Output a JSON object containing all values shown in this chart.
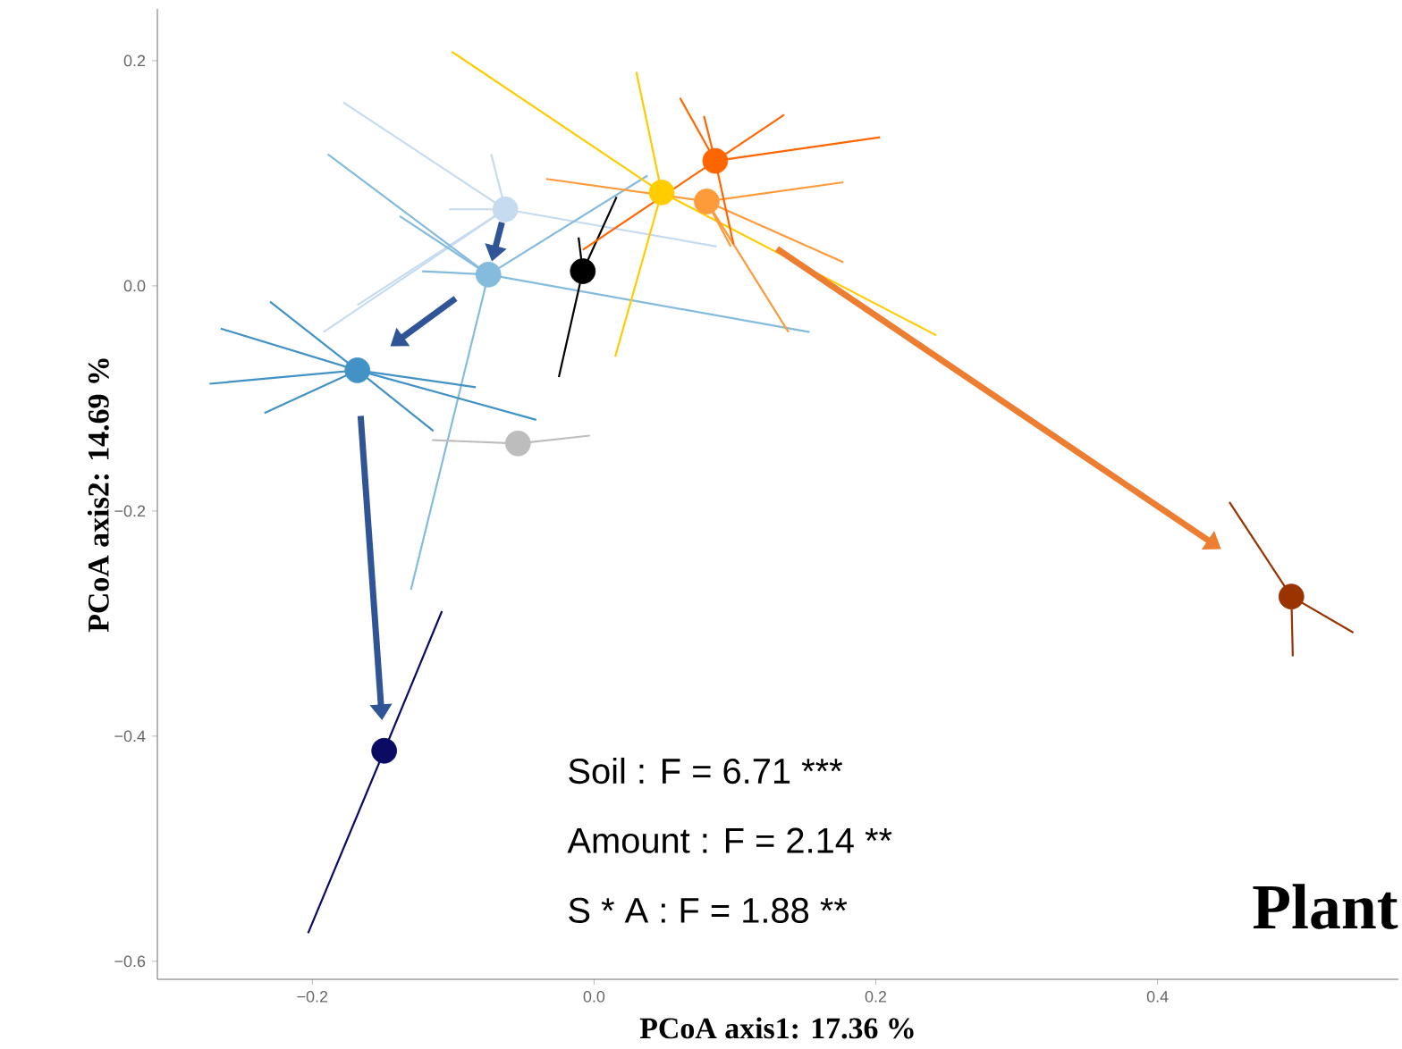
{
  "chart_data": {
    "type": "line",
    "xlabel": "PCoA axis1: 17.36 %",
    "ylabel": "PCoA axis2: 14.69 %",
    "xlim": [
      -0.31,
      0.571
    ],
    "ylim": [
      -0.616,
      0.246
    ],
    "xticks": [
      {
        "value": -0.2,
        "label": "−0.2"
      },
      {
        "value": 0,
        "label": "0.0"
      },
      {
        "value": 0.2,
        "label": "0.2"
      },
      {
        "value": 0.4,
        "label": "0.4"
      }
    ],
    "yticks": [
      {
        "value": -0.6,
        "label": "−0.6"
      },
      {
        "value": -0.4,
        "label": "−0.4"
      },
      {
        "value": -0.2,
        "label": "−0.2"
      },
      {
        "value": 0,
        "label": "0.0"
      },
      {
        "value": 0.2,
        "label": "0.2"
      }
    ],
    "line_style": "solid",
    "series": [
      {
        "color": "#c6dbef",
        "x": [
          -0.063,
          -0.178
        ],
        "values": [
          0.068,
          0.163
        ]
      },
      {
        "color": "#c6dbef",
        "x": [
          -0.063,
          -0.103
        ],
        "values": [
          0.068,
          0.068
        ]
      },
      {
        "color": "#c6dbef",
        "x": [
          -0.063,
          0.087
        ],
        "values": [
          0.068,
          0.035
        ]
      },
      {
        "color": "#c6dbef",
        "x": [
          -0.063,
          -0.192
        ],
        "values": [
          0.068,
          -0.041
        ]
      },
      {
        "color": "#c6dbef",
        "x": [
          -0.063,
          -0.073
        ],
        "values": [
          0.068,
          0.117
        ]
      },
      {
        "color": "#c6dbef",
        "x": [
          -0.063,
          -0.168
        ],
        "values": [
          0.068,
          -0.017
        ]
      },
      {
        "color": "#85bbdc",
        "x": [
          -0.075,
          -0.189
        ],
        "values": [
          0.01,
          0.117
        ]
      },
      {
        "color": "#85bbdc",
        "x": [
          -0.075,
          -0.138
        ],
        "values": [
          0.01,
          0.062
        ]
      },
      {
        "color": "#85bbdc",
        "x": [
          -0.075,
          0.153
        ],
        "values": [
          0.01,
          -0.041
        ]
      },
      {
        "color": "#85bbdc",
        "x": [
          -0.075,
          -0.13
        ],
        "values": [
          0.01,
          -0.27
        ]
      },
      {
        "color": "#85bbdc",
        "x": [
          -0.075,
          0.038
        ],
        "values": [
          0.01,
          0.098
        ]
      },
      {
        "color": "#85bbdc",
        "x": [
          -0.075,
          -0.122
        ],
        "values": [
          0.01,
          0.013
        ]
      },
      {
        "color": "#4292c6",
        "x": [
          -0.168,
          -0.23
        ],
        "values": [
          -0.075,
          -0.014
        ]
      },
      {
        "color": "#4292c6",
        "x": [
          -0.168,
          -0.265
        ],
        "values": [
          -0.075,
          -0.038
        ]
      },
      {
        "color": "#4292c6",
        "x": [
          -0.168,
          -0.273
        ],
        "values": [
          -0.075,
          -0.087
        ]
      },
      {
        "color": "#4292c6",
        "x": [
          -0.168,
          -0.234
        ],
        "values": [
          -0.075,
          -0.113
        ]
      },
      {
        "color": "#4292c6",
        "x": [
          -0.168,
          -0.114
        ],
        "values": [
          -0.075,
          -0.129
        ]
      },
      {
        "color": "#4292c6",
        "x": [
          -0.168,
          -0.041
        ],
        "values": [
          -0.075,
          -0.119
        ]
      },
      {
        "color": "#4292c6",
        "x": [
          -0.168,
          -0.084
        ],
        "values": [
          -0.075,
          -0.09
        ]
      },
      {
        "color": "#0b0b63",
        "x": [
          -0.149,
          -0.203
        ],
        "values": [
          -0.413,
          -0.575
        ]
      },
      {
        "color": "#0b0b63",
        "x": [
          -0.149,
          -0.108
        ],
        "values": [
          -0.413,
          -0.289
        ]
      },
      {
        "color": "#bdbdbd",
        "x": [
          -0.054,
          -0.115
        ],
        "values": [
          -0.14,
          -0.137
        ]
      },
      {
        "color": "#bdbdbd",
        "x": [
          -0.054,
          -0.003
        ],
        "values": [
          -0.14,
          -0.133
        ]
      },
      {
        "color": "#000000",
        "x": [
          -0.008,
          -0.025
        ],
        "values": [
          0.013,
          -0.081
        ]
      },
      {
        "color": "#000000",
        "x": [
          -0.008,
          0.016
        ],
        "values": [
          0.013,
          0.079
        ]
      },
      {
        "color": "#000000",
        "x": [
          -0.008,
          -0.011
        ],
        "values": [
          0.013,
          0.043
        ]
      },
      {
        "color": "#ffcc00",
        "x": [
          0.048,
          -0.101
        ],
        "values": [
          0.083,
          0.208
        ]
      },
      {
        "color": "#ffcc00",
        "x": [
          0.048,
          0.03
        ],
        "values": [
          0.083,
          0.19
        ]
      },
      {
        "color": "#ffcc00",
        "x": [
          0.048,
          0.015
        ],
        "values": [
          0.083,
          -0.063
        ]
      },
      {
        "color": "#ffcc00",
        "x": [
          0.048,
          0.243
        ],
        "values": [
          0.083,
          -0.044
        ]
      },
      {
        "color": "#fd9a3a",
        "x": [
          0.08,
          0.177
        ],
        "values": [
          0.075,
          0.092
        ]
      },
      {
        "color": "#fd9a3a",
        "x": [
          0.08,
          0.138
        ],
        "values": [
          0.075,
          -0.041
        ]
      },
      {
        "color": "#fd9a3a",
        "x": [
          0.08,
          0.177
        ],
        "values": [
          0.075,
          0.021
        ]
      },
      {
        "color": "#fd9a3a",
        "x": [
          0.08,
          -0.034
        ],
        "values": [
          0.075,
          0.095
        ]
      },
      {
        "color": "#fd9a3a",
        "x": [
          0.08,
          0.097
        ],
        "values": [
          0.075,
          0.035
        ]
      },
      {
        "color": "#ff6600",
        "x": [
          0.086,
          0.203
        ],
        "values": [
          0.111,
          0.132
        ]
      },
      {
        "color": "#ff6600",
        "x": [
          0.086,
          0.135
        ],
        "values": [
          0.111,
          0.152
        ]
      },
      {
        "color": "#ff6600",
        "x": [
          0.086,
          0.061
        ],
        "values": [
          0.111,
          0.167
        ]
      },
      {
        "color": "#ff6600",
        "x": [
          0.086,
          0.078
        ],
        "values": [
          0.111,
          0.151
        ]
      },
      {
        "color": "#ff6600",
        "x": [
          0.086,
          0.099
        ],
        "values": [
          0.111,
          0.037
        ]
      },
      {
        "color": "#ff6600",
        "x": [
          0.086,
          -0.008
        ],
        "values": [
          0.111,
          0.032
        ]
      },
      {
        "color": "#993300",
        "x": [
          0.495,
          0.451
        ],
        "values": [
          -0.276,
          -0.192
        ]
      },
      {
        "color": "#993300",
        "x": [
          0.495,
          0.539
        ],
        "values": [
          -0.276,
          -0.308
        ]
      },
      {
        "color": "#993300",
        "x": [
          0.495,
          0.496
        ],
        "values": [
          -0.276,
          -0.329
        ]
      },
      {
        "type": "scatter",
        "marker": "circle",
        "x": [
          -0.063,
          -0.075,
          -0.168,
          -0.149,
          -0.054,
          -0.008,
          0.048,
          0.08,
          0.086,
          0.495
        ],
        "values": [
          0.068,
          0.01,
          -0.075,
          -0.413,
          -0.14,
          0.013,
          0.083,
          0.075,
          0.111,
          -0.276
        ],
        "colors": [
          "#c6dbef",
          "#85bbdc",
          "#4292c6",
          "#0b0b63",
          "#bdbdbd",
          "#000000",
          "#ffcc00",
          "#fd9a3a",
          "#ff6600",
          "#993300"
        ]
      }
    ],
    "annotations": [
      "Soil : F = 6.71 ***",
      "Amount : F = 2.14 **",
      "S * A  : F = 1.88 **",
      "Plant"
    ]
  }
}
